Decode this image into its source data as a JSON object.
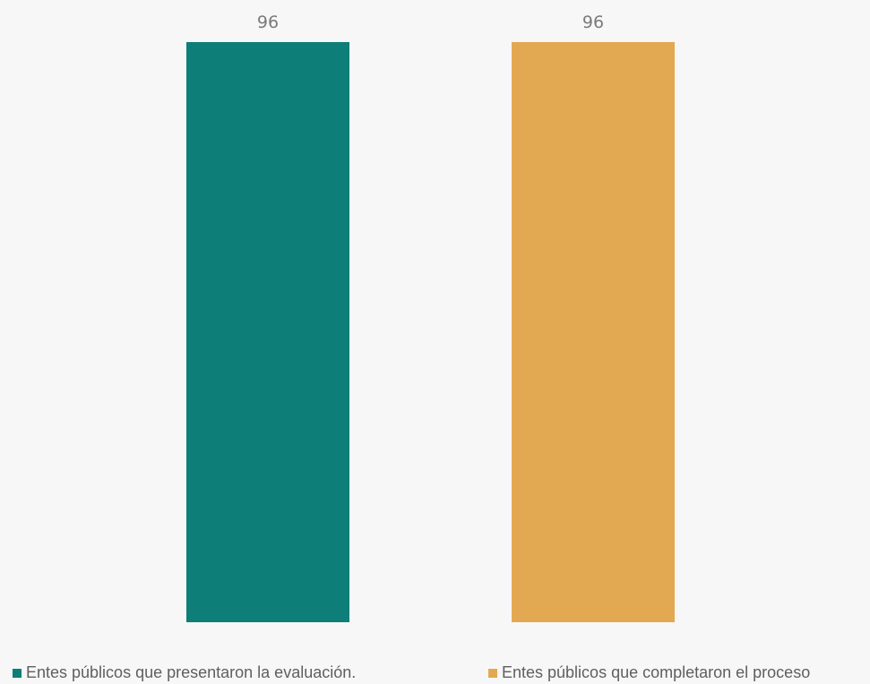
{
  "chart_data": {
    "type": "bar",
    "title": "",
    "xlabel": "",
    "ylabel": "",
    "ylim": [
      0,
      96
    ],
    "grid": false,
    "legend_position": "bottom",
    "series": [
      {
        "name": "Entes públicos que presentaron la evaluación.",
        "value": 96,
        "color": "#0e7e78"
      },
      {
        "name": "Entes públicos que completaron el proceso",
        "value": 96,
        "color": "#e3a952"
      }
    ],
    "data_labels": [
      "96",
      "96"
    ]
  }
}
